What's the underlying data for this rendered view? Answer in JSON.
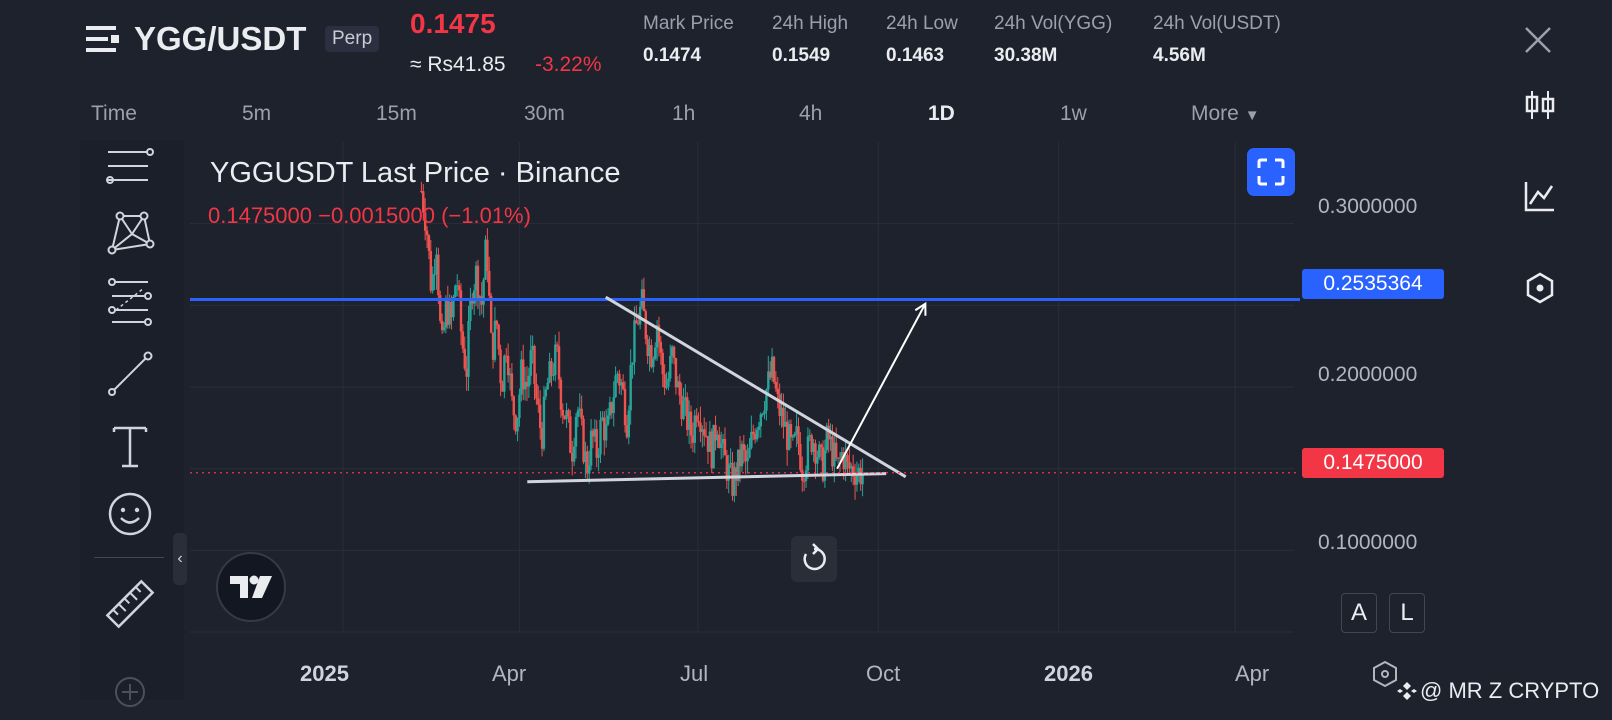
{
  "header": {
    "symbol": "YGG/USDT",
    "contract_type": "Perp",
    "last_price": "0.1475",
    "fiat_price": "≈ Rs41.85",
    "change_pct": "-3.22%",
    "stats": [
      {
        "label": "Mark Price",
        "value": "0.1474"
      },
      {
        "label": "24h High",
        "value": "0.1549"
      },
      {
        "label": "24h Low",
        "value": "0.1463"
      },
      {
        "label": "24h Vol(YGG)",
        "value": "30.38M"
      },
      {
        "label": "24h Vol(USDT)",
        "value": "4.56M"
      }
    ]
  },
  "intervals": {
    "items": [
      "Time",
      "5m",
      "15m",
      "30m",
      "1h",
      "4h",
      "1D",
      "1w"
    ],
    "more_label": "More",
    "active": "1D"
  },
  "chart": {
    "title": "YGGUSDT Last Price · Binance",
    "price_line": "0.1475000  −0.0015000 (−1.01%)",
    "y_ticks": [
      "0.3000000",
      "0.2000000",
      "0.1000000"
    ],
    "x_ticks": [
      "2025",
      "Apr",
      "Jul",
      "Oct",
      "2026",
      "Apr"
    ],
    "level_tag": "0.2535364",
    "price_tag": "0.1475000",
    "scale_buttons": [
      "A",
      "L"
    ]
  },
  "chart_data": {
    "type": "candlestick",
    "x_range": [
      "2024-10-15",
      "2026-05-01"
    ],
    "y_range": [
      0.05,
      0.35
    ],
    "closes": [
      0.32,
      0.3,
      0.26,
      0.29,
      0.22,
      0.25,
      0.24,
      0.27,
      0.23,
      0.21,
      0.26,
      0.27,
      0.25,
      0.29,
      0.22,
      0.24,
      0.2,
      0.23,
      0.19,
      0.18,
      0.21,
      0.2,
      0.22,
      0.19,
      0.17,
      0.2,
      0.21,
      0.22,
      0.19,
      0.18,
      0.16,
      0.19,
      0.17,
      0.15,
      0.17,
      0.16,
      0.18,
      0.17,
      0.19,
      0.21,
      0.2,
      0.18,
      0.22,
      0.24,
      0.25,
      0.23,
      0.22,
      0.24,
      0.21,
      0.2,
      0.22,
      0.2,
      0.19,
      0.18,
      0.17,
      0.19,
      0.18,
      0.17,
      0.16,
      0.18,
      0.16,
      0.15,
      0.14,
      0.15,
      0.16,
      0.15,
      0.17,
      0.18,
      0.19,
      0.2,
      0.21,
      0.19,
      0.18,
      0.17,
      0.16,
      0.17,
      0.15,
      0.16,
      0.17,
      0.16,
      0.15,
      0.17,
      0.16,
      0.15,
      0.16,
      0.15,
      0.15,
      0.148,
      0.1475
    ],
    "annotations": [
      {
        "type": "horizontal",
        "y": 0.2535364,
        "color": "#2962ff"
      },
      {
        "type": "trendline",
        "from": [
          "2025-04-05",
          0.142
        ],
        "to": [
          "2025-10-05",
          0.147
        ]
      },
      {
        "type": "trendline",
        "from": [
          "2025-05-15",
          0.255
        ],
        "to": [
          "2025-10-15",
          0.145
        ]
      },
      {
        "type": "arrow",
        "from": [
          "2025-09-10",
          0.15
        ],
        "to": [
          "2025-10-25",
          0.251
        ]
      }
    ]
  },
  "watermark": "@ MR Z CRYPTO"
}
